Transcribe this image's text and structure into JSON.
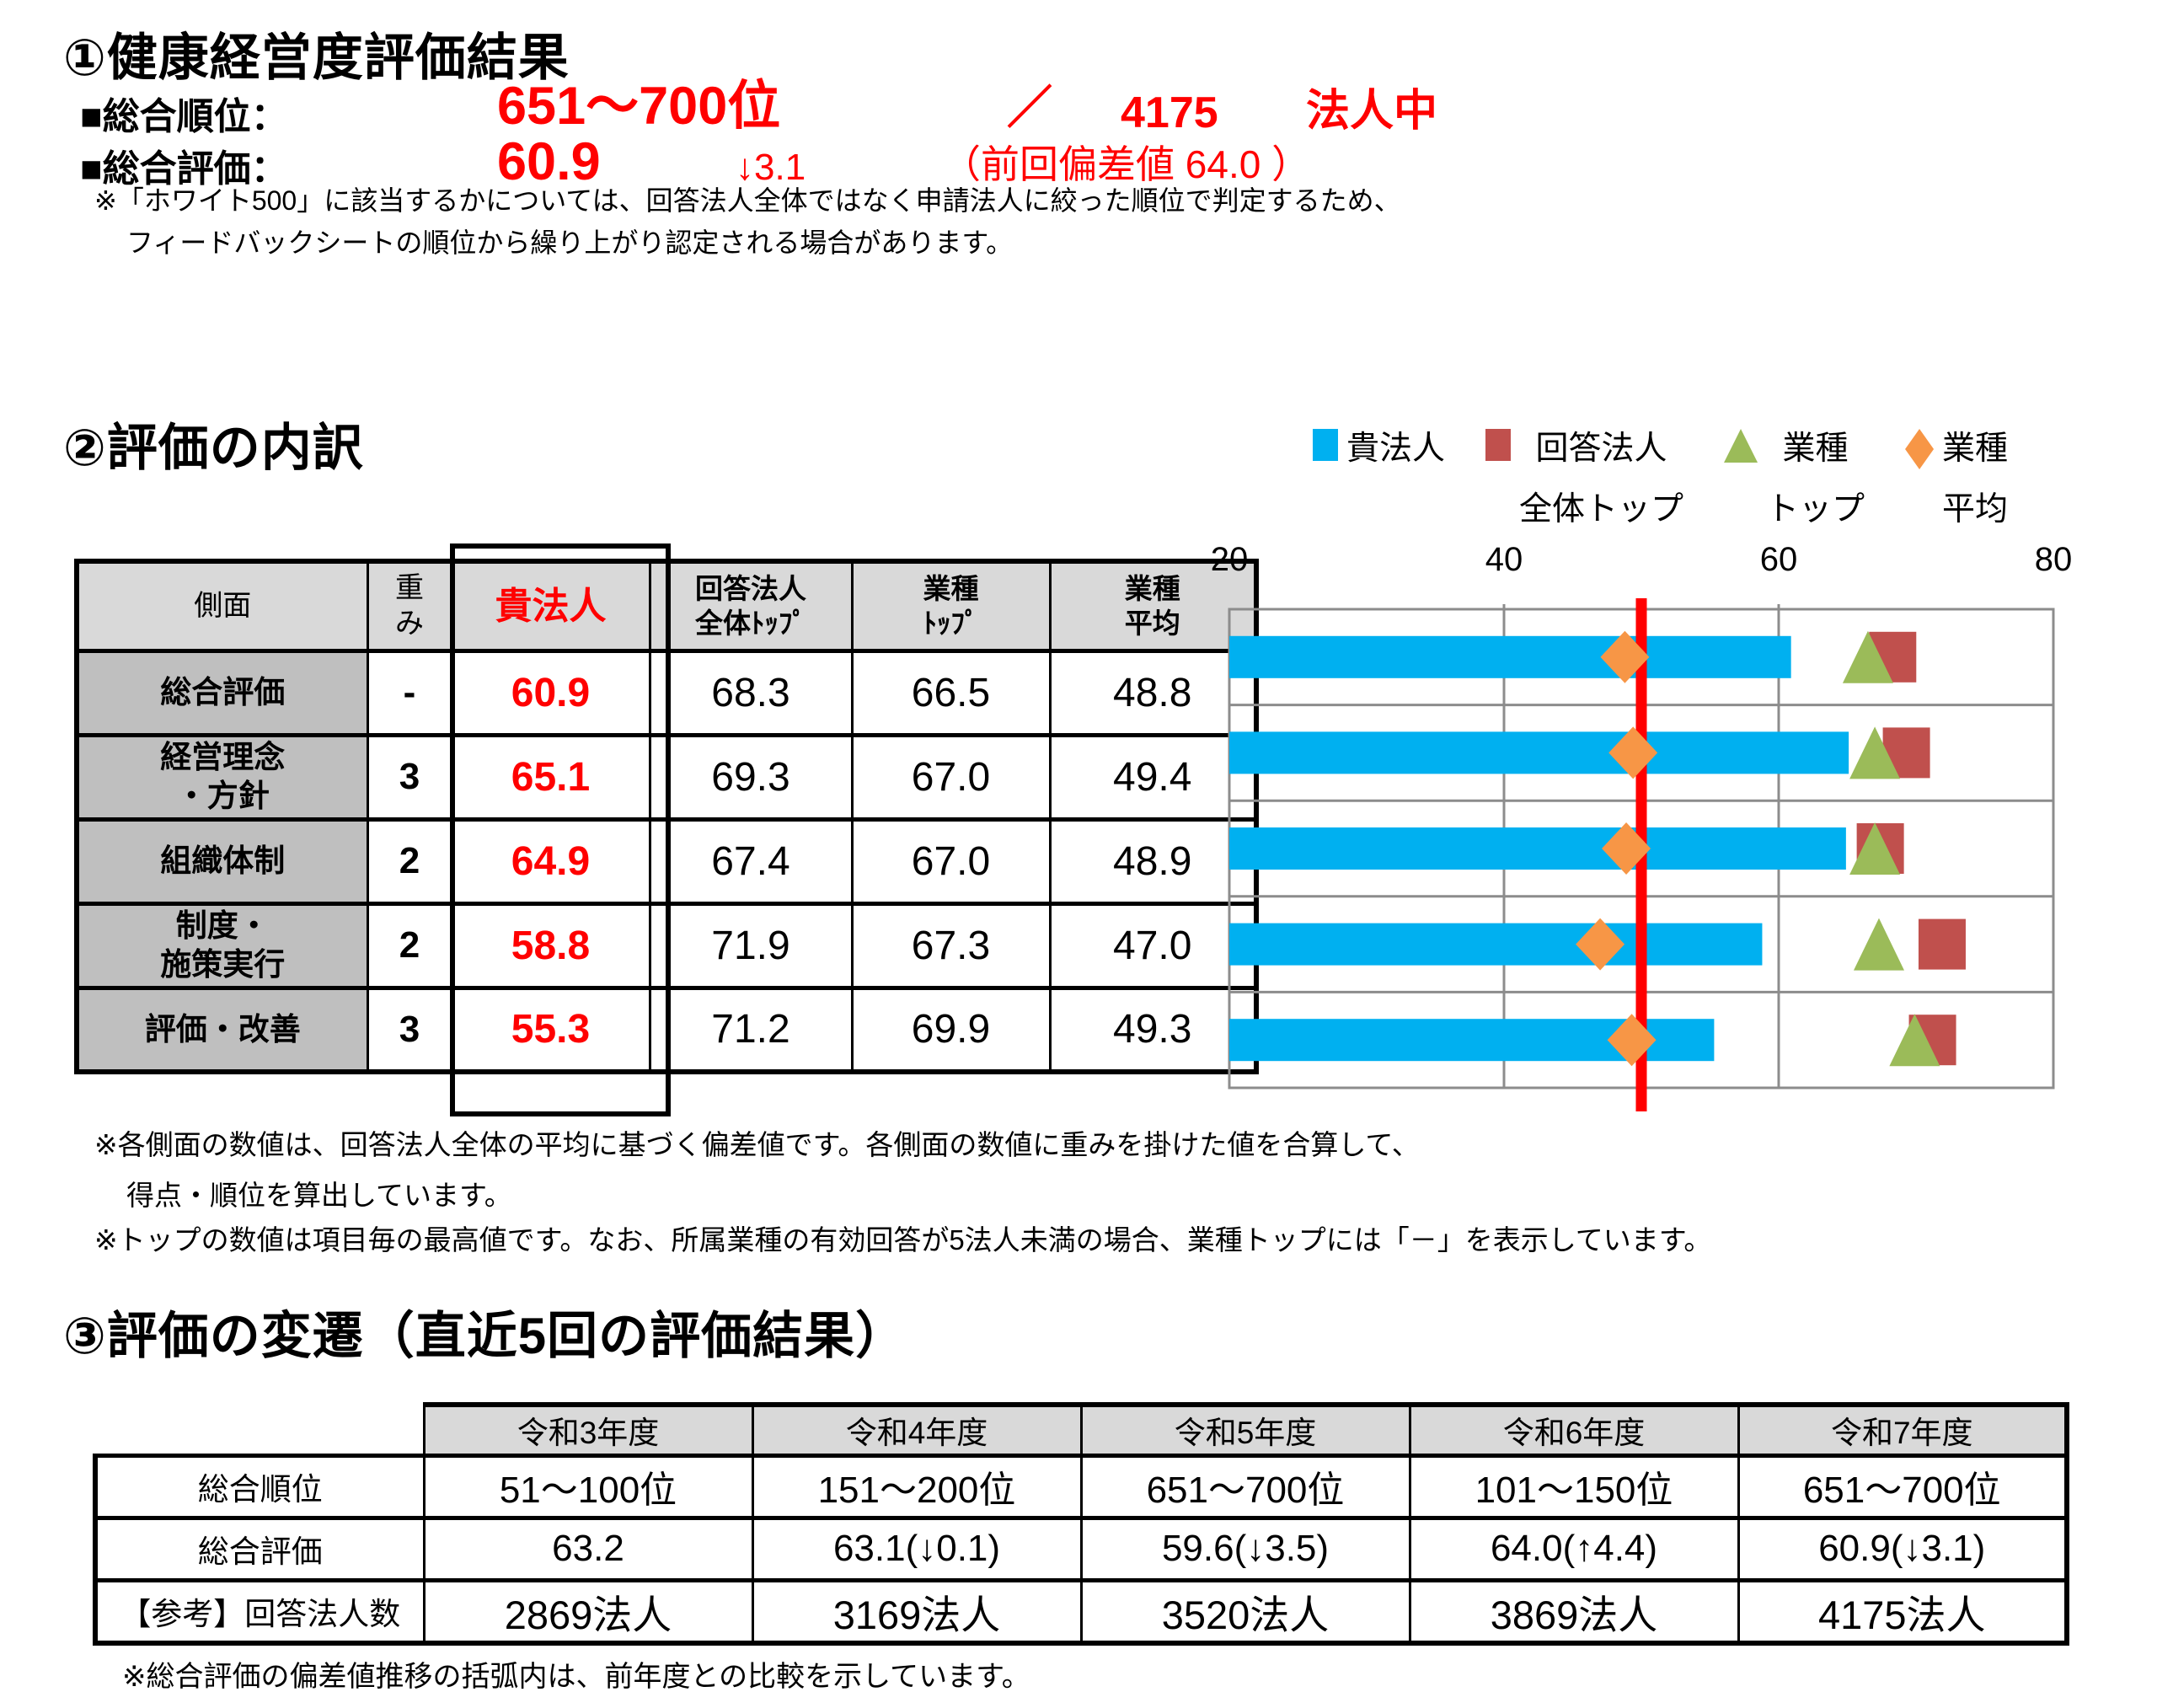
{
  "section1": {
    "title": "①健康経営度評価結果",
    "rank_label": "■総合順位：",
    "rank_value": "651～700位",
    "rank_slash": "／",
    "rank_total": "4175",
    "rank_total_suffix": "法人中",
    "score_label": "■総合評価：",
    "score_value": "60.9",
    "score_change": "↓3.1",
    "score_prev": "（前回偏差値 64.0 ）",
    "note_line1": "※「ホワイト500」に該当するかについては、回答法人全体ではなく申請法人に絞った順位で判定するため、",
    "note_line2": "フィードバックシートの順位から繰り上がり認定される場合があります。"
  },
  "section2": {
    "title": "②評価の内訳",
    "legend": [
      {
        "marker": "square",
        "color": "#00B0F0",
        "label": "貴法人"
      },
      {
        "marker": "square",
        "color": "#C0504D",
        "label": "回答法人\n全体トップ"
      },
      {
        "marker": "triangle",
        "color": "#9BBB59",
        "label": "業種\nトップ"
      },
      {
        "marker": "diamond",
        "color": "#F79646",
        "label": "業種\n平均"
      }
    ],
    "table": {
      "headers": {
        "aspect": "側面",
        "weight": "重\nみ",
        "own": "貴法人",
        "resp_top": "回答法人\n全体ﾄｯﾌﾟ",
        "ind_top": "業種\nﾄｯﾌﾟ",
        "ind_avg": "業種\n平均"
      },
      "rows": [
        {
          "label": "総合評価",
          "weight": "-",
          "own": "60.9",
          "resp_top": "68.3",
          "ind_top": "66.5",
          "ind_avg": "48.8"
        },
        {
          "label": "経営理念\n・方針",
          "weight": "3",
          "own": "65.1",
          "resp_top": "69.3",
          "ind_top": "67.0",
          "ind_avg": "49.4"
        },
        {
          "label": "組織体制",
          "weight": "2",
          "own": "64.9",
          "resp_top": "67.4",
          "ind_top": "67.0",
          "ind_avg": "48.9"
        },
        {
          "label": "制度・\n施策実行",
          "weight": "2",
          "own": "58.8",
          "resp_top": "71.9",
          "ind_top": "67.3",
          "ind_avg": "47.0"
        },
        {
          "label": "評価・改善",
          "weight": "3",
          "own": "55.3",
          "resp_top": "71.2",
          "ind_top": "69.9",
          "ind_avg": "49.3"
        }
      ]
    },
    "note_line1": "※各側面の数値は、回答法人全体の平均に基づく偏差値です。各側面の数値に重みを掛けた値を合算して、",
    "note_line2": "得点・順位を算出しています。",
    "note_line3": "※トップの数値は項目毎の最高値です。なお、所属業種の有効回答が5法人未満の場合、業種トップには「－」を表示しています。"
  },
  "chart_data": {
    "type": "bar",
    "orientation": "horizontal",
    "categories": [
      "総合評価",
      "経営理念・方針",
      "組織体制",
      "制度・施策実行",
      "評価・改善"
    ],
    "series": [
      {
        "name": "貴法人",
        "style": "bar",
        "color": "#00B0F0",
        "values": [
          60.9,
          65.1,
          64.9,
          58.8,
          55.3
        ]
      },
      {
        "name": "回答法人全体トップ",
        "style": "square",
        "color": "#C0504D",
        "values": [
          68.3,
          69.3,
          67.4,
          71.9,
          71.2
        ]
      },
      {
        "name": "業種トップ",
        "style": "triangle",
        "color": "#9BBB59",
        "values": [
          66.5,
          67.0,
          67.0,
          67.3,
          69.9
        ]
      },
      {
        "name": "業種平均",
        "style": "diamond",
        "color": "#F79646",
        "values": [
          48.8,
          49.4,
          48.9,
          47.0,
          49.3
        ]
      }
    ],
    "xlim": [
      20,
      80
    ],
    "xticks": [
      "20",
      "40",
      "60",
      "80"
    ],
    "reference_line": 50,
    "reference_line_color": "#FF0000",
    "grid_color": "#8C8C8C",
    "legend_position": "top-right"
  },
  "section3": {
    "title": "③評価の変遷（直近5回の評価結果）",
    "table": {
      "year_headers": [
        "令和3年度",
        "令和4年度",
        "令和5年度",
        "令和6年度",
        "令和7年度"
      ],
      "rows": [
        {
          "label": "総合順位",
          "values": [
            "51～100位",
            "151～200位",
            "651～700位",
            "101～150位",
            "651～700位"
          ]
        },
        {
          "label": "総合評価",
          "values": [
            "63.2",
            "63.1(↓0.1)",
            "59.6(↓3.5)",
            "64.0(↑4.4)",
            "60.9(↓3.1)"
          ]
        },
        {
          "label": "【参考】回答法人数",
          "values": [
            "2869法人",
            "3169法人",
            "3520法人",
            "3869法人",
            "4175法人"
          ]
        }
      ]
    },
    "note": "※総合評価の偏差値推移の括弧内は、前年度との比較を示しています。"
  }
}
